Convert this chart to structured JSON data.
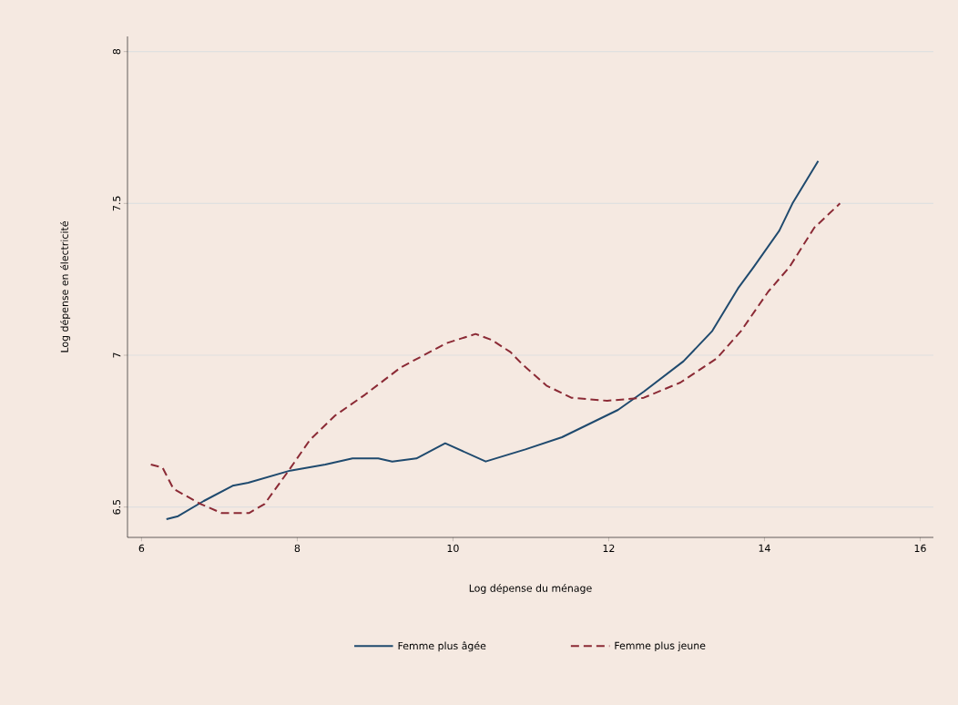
{
  "chart_data": {
    "type": "line",
    "xlabel": "Log  dépense du ménage",
    "ylabel": "Log dépense en électricité",
    "xlim": [
      5.82,
      16.17
    ],
    "ylim": [
      6.4,
      8.05
    ],
    "xticks": [
      6,
      8,
      10,
      12,
      14,
      16
    ],
    "yticks": [
      6.5,
      7,
      7.5,
      8
    ],
    "grid": "y",
    "legend": "bottom",
    "series": [
      {
        "name": "Femme plus âgée",
        "color": "#1f4a6e",
        "line_style": "solid",
        "x": [
          6.32,
          6.47,
          6.8,
          7.17,
          7.37,
          7.91,
          8.36,
          8.71,
          9.04,
          9.22,
          9.53,
          9.9,
          10.42,
          10.93,
          11.4,
          12.12,
          12.45,
          12.96,
          13.33,
          13.66,
          13.86,
          14.19,
          14.36,
          14.69
        ],
        "values": [
          6.46,
          6.47,
          6.52,
          6.57,
          6.58,
          6.62,
          6.64,
          6.66,
          6.66,
          6.65,
          6.66,
          6.71,
          6.65,
          6.69,
          6.73,
          6.82,
          6.88,
          6.98,
          7.08,
          7.22,
          7.29,
          7.41,
          7.5,
          7.64
        ]
      },
      {
        "name": "Femme plus jeune",
        "color": "#8b2a35",
        "line_style": "dashed",
        "x": [
          6.12,
          6.27,
          6.41,
          6.76,
          7.03,
          7.38,
          7.58,
          7.89,
          8.16,
          8.48,
          8.87,
          9.33,
          9.92,
          10.29,
          10.5,
          10.74,
          10.89,
          11.2,
          11.52,
          11.98,
          12.45,
          12.92,
          13.39,
          13.7,
          14.05,
          14.32,
          14.64,
          14.97
        ],
        "values": [
          6.64,
          6.63,
          6.56,
          6.51,
          6.48,
          6.48,
          6.51,
          6.62,
          6.72,
          6.8,
          6.87,
          6.96,
          7.04,
          7.07,
          7.05,
          7.01,
          6.97,
          6.9,
          6.86,
          6.85,
          6.86,
          6.91,
          6.99,
          7.08,
          7.21,
          7.29,
          7.42,
          7.5
        ]
      }
    ]
  }
}
